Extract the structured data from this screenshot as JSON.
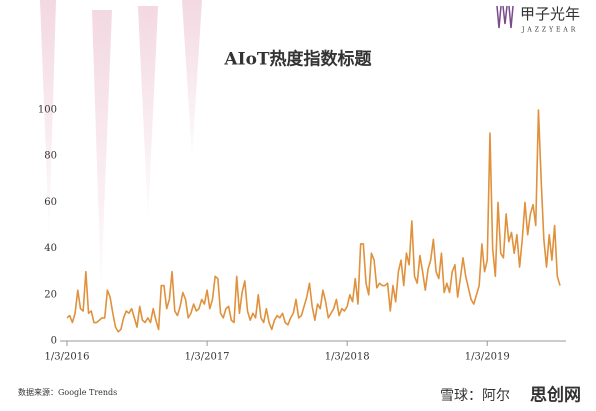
{
  "brand": {
    "name": "甲子光年",
    "subtitle": "JAZZYEAR"
  },
  "source": "数据来源：Google Trends",
  "watermark": [
    "雪球：阿尔",
    "思创网"
  ],
  "chart_data": {
    "type": "line",
    "title": "AIoT热度指数标题",
    "categories": [
      "1/3/2016",
      null,
      null,
      null,
      null,
      null,
      null,
      null,
      null,
      null,
      null,
      null,
      null,
      null,
      null,
      null,
      null,
      null,
      null,
      null,
      null,
      null,
      null,
      null,
      null,
      null,
      null,
      null,
      null,
      null,
      null,
      null,
      null,
      null,
      null,
      null,
      null,
      null,
      null,
      null,
      null,
      null,
      null,
      null,
      null,
      null,
      null,
      null,
      null,
      null,
      null,
      null,
      "1/3/2017",
      null,
      null,
      null,
      null,
      null,
      null,
      null,
      null,
      null,
      null,
      null,
      null,
      null,
      null,
      null,
      null,
      null,
      null,
      null,
      null,
      null,
      null,
      null,
      null,
      null,
      null,
      null,
      null,
      null,
      null,
      null,
      null,
      null,
      null,
      null,
      null,
      null,
      null,
      null,
      null,
      null,
      null,
      null,
      null,
      null,
      null,
      null,
      null,
      null,
      null,
      null,
      "1/3/2018",
      null,
      null,
      null,
      null,
      null,
      null,
      null,
      null,
      null,
      null,
      null,
      null,
      null,
      null,
      null,
      null,
      null,
      null,
      null,
      null,
      null,
      null,
      null,
      null,
      null,
      null,
      null,
      null,
      null,
      null,
      null,
      null,
      null,
      null,
      null,
      null,
      null,
      null,
      null,
      null,
      null,
      null,
      null,
      null,
      null,
      null,
      null,
      null,
      null,
      null,
      null,
      "1/3/2019",
      null,
      null,
      null,
      null,
      null,
      null,
      null,
      null,
      null,
      null,
      null,
      null,
      null,
      null,
      null,
      null,
      null,
      null,
      null,
      null,
      null,
      null,
      null,
      null,
      null,
      null,
      null
    ],
    "values": [
      10,
      11,
      8,
      12,
      22,
      14,
      13,
      30,
      12,
      13,
      8,
      8,
      9,
      10,
      10,
      22,
      19,
      12,
      6,
      4,
      5,
      10,
      13,
      12,
      14,
      10,
      6,
      15,
      9,
      8,
      10,
      8,
      14,
      9,
      5,
      24,
      24,
      14,
      18,
      30,
      13,
      11,
      15,
      21,
      18,
      10,
      12,
      16,
      13,
      14,
      18,
      16,
      22,
      14,
      18,
      28,
      27,
      12,
      10,
      14,
      15,
      9,
      8,
      28,
      12,
      21,
      26,
      13,
      9,
      12,
      10,
      20,
      10,
      8,
      14,
      8,
      5,
      9,
      11,
      10,
      12,
      8,
      7,
      10,
      12,
      18,
      10,
      11,
      15,
      19,
      25,
      15,
      9,
      16,
      14,
      22,
      17,
      10,
      12,
      14,
      18,
      11,
      14,
      13,
      15,
      20,
      17,
      27,
      16,
      42,
      42,
      25,
      20,
      38,
      35,
      23,
      25,
      24,
      24,
      25,
      13,
      24,
      17,
      30,
      35,
      24,
      38,
      33,
      52,
      28,
      25,
      37,
      30,
      22,
      31,
      35,
      44,
      30,
      27,
      38,
      21,
      25,
      21,
      30,
      33,
      19,
      27,
      36,
      28,
      23,
      18,
      16,
      20,
      24,
      42,
      30,
      35,
      90,
      40,
      28,
      60,
      38,
      36,
      55,
      43,
      47,
      38,
      46,
      32,
      44,
      60,
      46,
      55,
      59,
      50,
      100,
      70,
      44,
      32,
      46,
      35,
      50,
      28,
      24
    ],
    "color": "#e0913c",
    "ylim": [
      0,
      100
    ],
    "yticks": [
      0,
      20,
      40,
      60,
      80,
      100
    ],
    "grid": false
  }
}
